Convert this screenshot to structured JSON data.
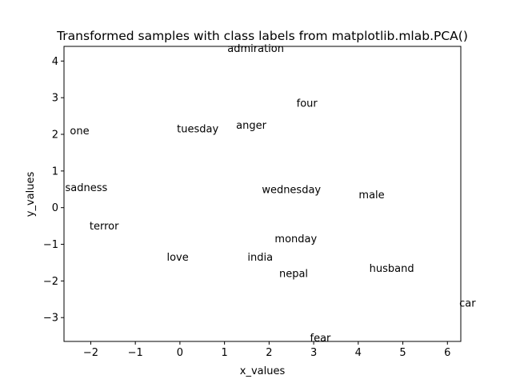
{
  "chart_data": {
    "type": "scatter",
    "title": "Transformed samples with class labels from matplotlib.mlab.PCA()",
    "xlabel": "x_values",
    "ylabel": "y_values",
    "xlim": [
      -2.6,
      6.3
    ],
    "ylim": [
      -3.65,
      4.4
    ],
    "xticks": [
      -2,
      -1,
      0,
      1,
      2,
      3,
      4,
      5,
      6
    ],
    "yticks": [
      -3,
      -2,
      -1,
      0,
      1,
      2,
      3,
      4
    ],
    "xtick_labels": [
      "−2",
      "−1",
      "0",
      "1",
      "2",
      "3",
      "4",
      "5",
      "6"
    ],
    "ytick_labels": [
      "−3",
      "−2",
      "−1",
      "0",
      "1",
      "2",
      "3",
      "4"
    ],
    "grid": false,
    "marker": "none",
    "label_anchor": "center",
    "points": [
      {
        "label": "admiration",
        "x": 1.7,
        "y": 4.35
      },
      {
        "label": "four",
        "x": 2.85,
        "y": 2.85
      },
      {
        "label": "one",
        "x": -2.25,
        "y": 2.1
      },
      {
        "label": "tuesday",
        "x": 0.4,
        "y": 2.15
      },
      {
        "label": "anger",
        "x": 1.6,
        "y": 2.25
      },
      {
        "label": "sadness",
        "x": -2.1,
        "y": 0.55
      },
      {
        "label": "wednesday",
        "x": 2.5,
        "y": 0.5
      },
      {
        "label": "male",
        "x": 4.3,
        "y": 0.35
      },
      {
        "label": "terror",
        "x": -1.7,
        "y": -0.5
      },
      {
        "label": "monday",
        "x": 2.6,
        "y": -0.85
      },
      {
        "label": "love",
        "x": -0.05,
        "y": -1.35
      },
      {
        "label": "india",
        "x": 1.8,
        "y": -1.35
      },
      {
        "label": "husband",
        "x": 4.75,
        "y": -1.65
      },
      {
        "label": "nepal",
        "x": 2.55,
        "y": -1.8
      },
      {
        "label": "car",
        "x": 6.45,
        "y": -2.6
      },
      {
        "label": "fear",
        "x": 3.15,
        "y": -3.55
      }
    ]
  }
}
